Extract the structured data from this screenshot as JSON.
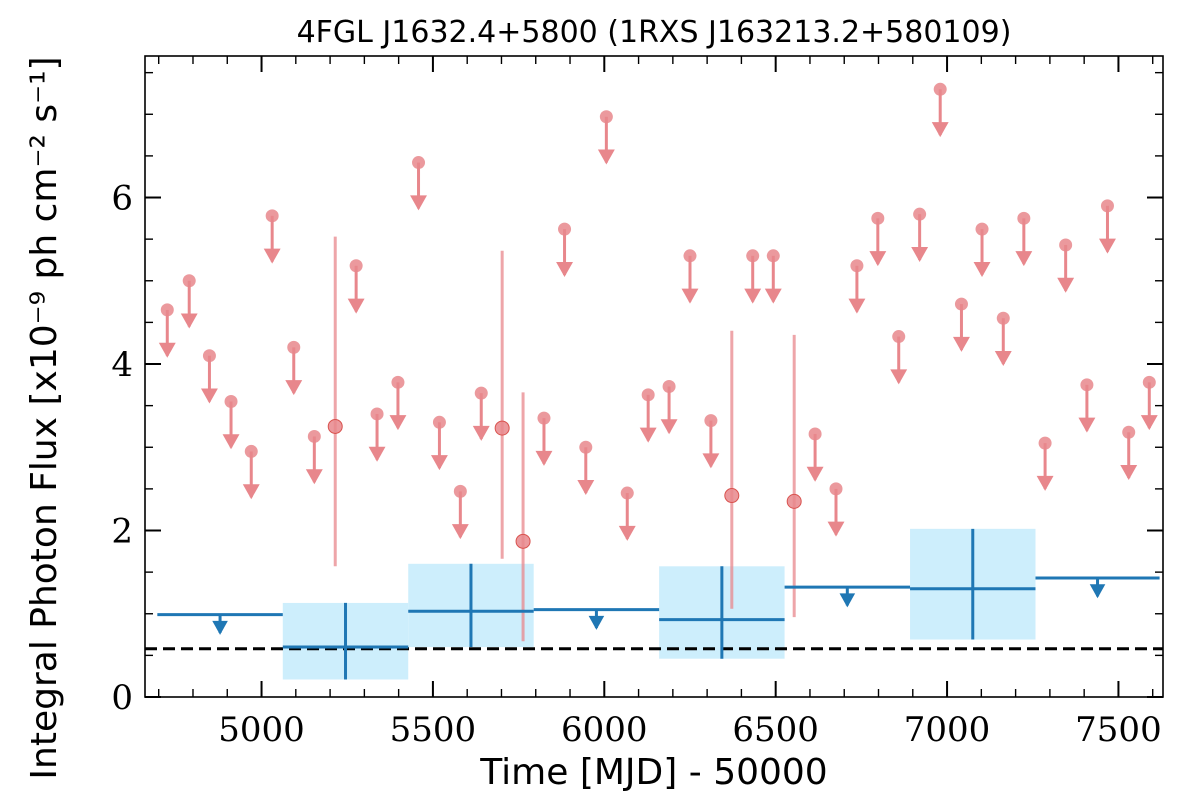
{
  "chart_data": {
    "type": "scatter",
    "title": "4FGL J1632.4+5800 (1RXS J163213.2+580109)",
    "xlabel": "Time [MJD] - 50000",
    "ylabel": "Integral Photon Flux [x10⁻⁹ ph cm⁻² s⁻¹]",
    "xlim": [
      4660,
      7630
    ],
    "ylim": [
      0,
      7.7
    ],
    "x_ticks": [
      5000,
      5500,
      6000,
      6500,
      7000,
      7500
    ],
    "x_tick_labels": [
      "5000",
      "5500",
      "6000",
      "6500",
      "7000",
      "7500"
    ],
    "y_ticks": [
      0,
      2,
      4,
      6
    ],
    "y_tick_labels": [
      "0",
      "2",
      "4",
      "6"
    ],
    "baseline": 0.58,
    "colors": {
      "short_bins": "#e8878c",
      "long_bins": "#1f77b4",
      "error_box": "#cdeefc",
      "baseline": "#000000"
    },
    "short_bins": {
      "upper_limits": [
        {
          "x": 4725,
          "y": 4.65
        },
        {
          "x": 4789,
          "y": 5.0
        },
        {
          "x": 4848,
          "y": 4.1
        },
        {
          "x": 4911,
          "y": 3.55
        },
        {
          "x": 4970,
          "y": 2.95
        },
        {
          "x": 5031,
          "y": 5.78
        },
        {
          "x": 5094,
          "y": 4.2
        },
        {
          "x": 5154,
          "y": 3.13
        },
        {
          "x": 5276,
          "y": 5.18
        },
        {
          "x": 5337,
          "y": 3.4
        },
        {
          "x": 5398,
          "y": 3.78
        },
        {
          "x": 5458,
          "y": 6.42
        },
        {
          "x": 5519,
          "y": 3.3
        },
        {
          "x": 5580,
          "y": 2.47
        },
        {
          "x": 5641,
          "y": 3.65
        },
        {
          "x": 5824,
          "y": 3.35
        },
        {
          "x": 5884,
          "y": 5.62
        },
        {
          "x": 5946,
          "y": 3.0
        },
        {
          "x": 6006,
          "y": 6.97
        },
        {
          "x": 6067,
          "y": 2.45
        },
        {
          "x": 6128,
          "y": 3.63
        },
        {
          "x": 6189,
          "y": 3.73
        },
        {
          "x": 6250,
          "y": 5.3
        },
        {
          "x": 6311,
          "y": 3.32
        },
        {
          "x": 6433,
          "y": 5.3
        },
        {
          "x": 6493,
          "y": 5.3
        },
        {
          "x": 6615,
          "y": 3.16
        },
        {
          "x": 6676,
          "y": 2.5
        },
        {
          "x": 6737,
          "y": 5.18
        },
        {
          "x": 6798,
          "y": 5.75
        },
        {
          "x": 6859,
          "y": 4.33
        },
        {
          "x": 6920,
          "y": 5.8
        },
        {
          "x": 6980,
          "y": 7.3
        },
        {
          "x": 7042,
          "y": 4.72
        },
        {
          "x": 7102,
          "y": 5.62
        },
        {
          "x": 7164,
          "y": 4.55
        },
        {
          "x": 7224,
          "y": 5.75
        },
        {
          "x": 7286,
          "y": 3.05
        },
        {
          "x": 7346,
          "y": 5.43
        },
        {
          "x": 7408,
          "y": 3.75
        },
        {
          "x": 7468,
          "y": 5.9
        },
        {
          "x": 7530,
          "y": 3.18
        },
        {
          "x": 7590,
          "y": 3.78
        }
      ],
      "detections": [
        {
          "x": 5215,
          "y": 3.25,
          "low": 1.57,
          "high": 5.53
        },
        {
          "x": 5702,
          "y": 3.23,
          "low": 1.66,
          "high": 5.36
        },
        {
          "x": 5763,
          "y": 1.87,
          "low": 0.67,
          "high": 3.66
        },
        {
          "x": 6372,
          "y": 2.42,
          "low": 1.06,
          "high": 4.4
        },
        {
          "x": 6554,
          "y": 2.35,
          "low": 0.96,
          "high": 4.35
        }
      ]
    },
    "long_bins": {
      "upper_limits": [
        {
          "x0": 4696,
          "x1": 5062,
          "y": 0.99
        },
        {
          "x0": 5794,
          "x1": 6160,
          "y": 1.05
        },
        {
          "x0": 6526,
          "x1": 6892,
          "y": 1.32
        },
        {
          "x0": 7258,
          "x1": 7620,
          "y": 1.43
        }
      ],
      "detections": [
        {
          "x0": 5062,
          "x1": 5428,
          "y": 0.6,
          "low": 0.21,
          "high": 1.13
        },
        {
          "x0": 5428,
          "x1": 5794,
          "y": 1.03,
          "low": 0.6,
          "high": 1.6
        },
        {
          "x0": 6160,
          "x1": 6526,
          "y": 0.93,
          "low": 0.46,
          "high": 1.57
        },
        {
          "x0": 6892,
          "x1": 7258,
          "y": 1.3,
          "low": 0.69,
          "high": 2.02
        }
      ]
    }
  }
}
